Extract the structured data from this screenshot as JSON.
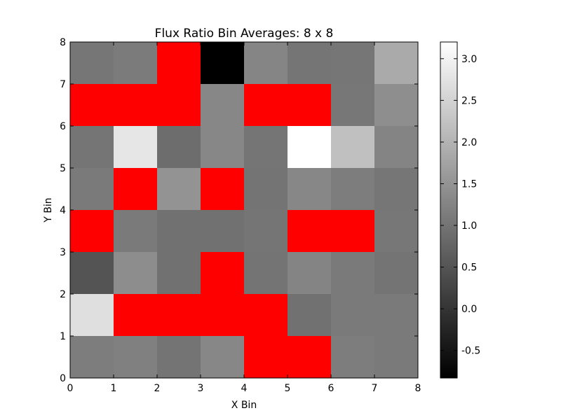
{
  "chart_data": {
    "type": "heatmap",
    "title": "Flux Ratio Bin Averages: 8 x 8",
    "xlabel": "X Bin",
    "ylabel": "Y Bin",
    "xlim": [
      0,
      8
    ],
    "ylim": [
      0,
      8
    ],
    "x_ticks": [
      "0",
      "1",
      "2",
      "3",
      "4",
      "5",
      "6",
      "7",
      "8"
    ],
    "y_ticks": [
      "0",
      "1",
      "2",
      "3",
      "4",
      "5",
      "6",
      "7",
      "8"
    ],
    "colormap": "gray",
    "missing_color": "#ff0000",
    "vmin": -0.83,
    "vmax": 3.2,
    "colorbar_ticks": [
      "-0.5",
      "0.0",
      "0.5",
      "1.0",
      "1.5",
      "2.0",
      "2.5",
      "3.0"
    ],
    "colorbar_tick_values": [
      -0.5,
      0.0,
      0.5,
      1.0,
      1.5,
      2.0,
      2.5,
      3.0
    ],
    "rows_top_to_bottom": [
      [
        1.03,
        1.12,
        null,
        -0.83,
        1.27,
        1.02,
        1.03,
        1.85
      ],
      [
        null,
        null,
        null,
        1.3,
        null,
        null,
        1.05,
        1.42
      ],
      [
        1.02,
        2.8,
        0.9,
        1.3,
        1.02,
        3.2,
        2.2,
        1.25
      ],
      [
        1.1,
        null,
        1.5,
        null,
        1.0,
        1.3,
        1.15,
        1.03
      ],
      [
        null,
        1.1,
        0.95,
        0.95,
        1.02,
        null,
        null,
        1.05
      ],
      [
        0.5,
        1.4,
        0.95,
        null,
        1.0,
        1.25,
        1.1,
        1.0
      ],
      [
        2.7,
        null,
        null,
        null,
        null,
        0.95,
        1.1,
        1.1
      ],
      [
        1.15,
        1.2,
        1.0,
        1.3,
        null,
        null,
        1.15,
        1.1
      ]
    ]
  }
}
